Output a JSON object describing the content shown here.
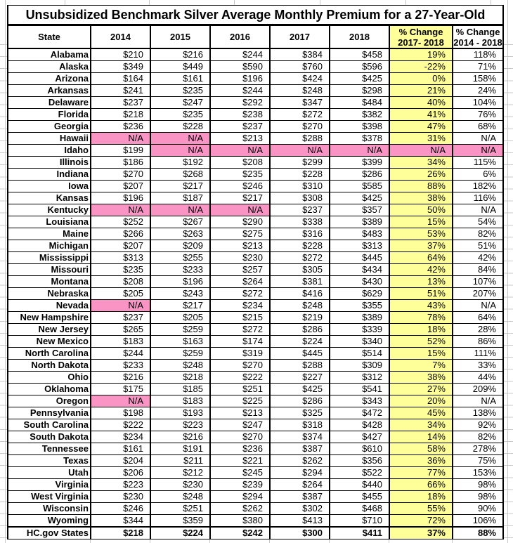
{
  "colors": {
    "highlight_yellow": "#FFFF99",
    "na_pink": "#F994C5",
    "table_border": "#000000",
    "margin_gridline": "#C9C9C9"
  },
  "header": {
    "state": "State",
    "pct1_line1": "% Change",
    "pct1_line2": "2017- 2018",
    "pct2_line1": "% Change",
    "pct2_line2": "2014 - 2018"
  },
  "chart_data": {
    "type": "table",
    "title": "Unsubsidized Benchmark Silver Average Monthly Premium for a 27-Year-Old",
    "columns": [
      "State",
      "2014",
      "2015",
      "2016",
      "2017",
      "2018",
      "% Change 2017- 2018",
      "% Change 2014 - 2018"
    ],
    "rows": [
      [
        "Alabama",
        "$210",
        "$216",
        "$244",
        "$384",
        "$458",
        "19%",
        "118%"
      ],
      [
        "Alaska",
        "$349",
        "$449",
        "$590",
        "$760",
        "$596",
        "-22%",
        "71%"
      ],
      [
        "Arizona",
        "$164",
        "$161",
        "$196",
        "$424",
        "$425",
        "0%",
        "158%"
      ],
      [
        "Arkansas",
        "$241",
        "$235",
        "$244",
        "$248",
        "$298",
        "21%",
        "24%"
      ],
      [
        "Delaware",
        "$237",
        "$247",
        "$292",
        "$347",
        "$484",
        "40%",
        "104%"
      ],
      [
        "Florida",
        "$218",
        "$235",
        "$238",
        "$272",
        "$382",
        "41%",
        "76%"
      ],
      [
        "Georgia",
        "$236",
        "$228",
        "$237",
        "$270",
        "$398",
        "47%",
        "68%"
      ],
      [
        "Hawaii",
        "N/A",
        "N/A",
        "$213",
        "$288",
        "$378",
        "31%",
        "N/A"
      ],
      [
        "Idaho",
        "$199",
        "N/A",
        "N/A",
        "N/A",
        "N/A",
        "N/A",
        "N/A"
      ],
      [
        "Illinois",
        "$186",
        "$192",
        "$208",
        "$299",
        "$399",
        "34%",
        "115%"
      ],
      [
        "Indiana",
        "$270",
        "$268",
        "$235",
        "$228",
        "$286",
        "26%",
        "6%"
      ],
      [
        "Iowa",
        "$207",
        "$217",
        "$246",
        "$310",
        "$585",
        "88%",
        "182%"
      ],
      [
        "Kansas",
        "$196",
        "$187",
        "$217",
        "$308",
        "$425",
        "38%",
        "116%"
      ],
      [
        "Kentucky",
        "N/A",
        "N/A",
        "N/A",
        "$237",
        "$357",
        "50%",
        "N/A"
      ],
      [
        "Louisiana",
        "$252",
        "$267",
        "$290",
        "$338",
        "$389",
        "15%",
        "54%"
      ],
      [
        "Maine",
        "$266",
        "$263",
        "$275",
        "$316",
        "$483",
        "53%",
        "82%"
      ],
      [
        "Michigan",
        "$207",
        "$209",
        "$213",
        "$228",
        "$313",
        "37%",
        "51%"
      ],
      [
        "Mississippi",
        "$313",
        "$255",
        "$230",
        "$272",
        "$445",
        "64%",
        "42%"
      ],
      [
        "Missouri",
        "$235",
        "$233",
        "$257",
        "$305",
        "$434",
        "42%",
        "84%"
      ],
      [
        "Montana",
        "$208",
        "$196",
        "$264",
        "$381",
        "$430",
        "13%",
        "107%"
      ],
      [
        "Nebraska",
        "$205",
        "$243",
        "$272",
        "$416",
        "$629",
        "51%",
        "207%"
      ],
      [
        "Nevada",
        "N/A",
        "$217",
        "$234",
        "$248",
        "$355",
        "43%",
        "N/A"
      ],
      [
        "New Hampshire",
        "$237",
        "$205",
        "$215",
        "$219",
        "$389",
        "78%",
        "64%"
      ],
      [
        "New Jersey",
        "$265",
        "$259",
        "$272",
        "$286",
        "$339",
        "18%",
        "28%"
      ],
      [
        "New Mexico",
        "$183",
        "$163",
        "$174",
        "$224",
        "$340",
        "52%",
        "86%"
      ],
      [
        "North Carolina",
        "$244",
        "$259",
        "$319",
        "$445",
        "$514",
        "15%",
        "111%"
      ],
      [
        "North Dakota",
        "$233",
        "$248",
        "$270",
        "$288",
        "$309",
        "7%",
        "33%"
      ],
      [
        "Ohio",
        "$216",
        "$218",
        "$222",
        "$227",
        "$312",
        "38%",
        "44%"
      ],
      [
        "Oklahoma",
        "$175",
        "$185",
        "$251",
        "$425",
        "$541",
        "27%",
        "209%"
      ],
      [
        "Oregon",
        "N/A",
        "$183",
        "$225",
        "$286",
        "$343",
        "20%",
        "N/A"
      ],
      [
        "Pennsylvania",
        "$198",
        "$193",
        "$213",
        "$325",
        "$472",
        "45%",
        "138%"
      ],
      [
        "South Carolina",
        "$222",
        "$223",
        "$247",
        "$318",
        "$428",
        "34%",
        "92%"
      ],
      [
        "South Dakota",
        "$234",
        "$216",
        "$270",
        "$374",
        "$427",
        "14%",
        "82%"
      ],
      [
        "Tennessee",
        "$161",
        "$191",
        "$236",
        "$387",
        "$610",
        "58%",
        "278%"
      ],
      [
        "Texas",
        "$204",
        "$211",
        "$221",
        "$262",
        "$356",
        "36%",
        "75%"
      ],
      [
        "Utah",
        "$206",
        "$212",
        "$245",
        "$294",
        "$522",
        "77%",
        "153%"
      ],
      [
        "Virginia",
        "$223",
        "$230",
        "$239",
        "$264",
        "$440",
        "66%",
        "98%"
      ],
      [
        "West Virginia",
        "$230",
        "$248",
        "$294",
        "$387",
        "$455",
        "18%",
        "98%"
      ],
      [
        "Wisconsin",
        "$246",
        "$251",
        "$262",
        "$302",
        "$468",
        "55%",
        "90%"
      ],
      [
        "Wyoming",
        "$344",
        "$359",
        "$380",
        "$413",
        "$710",
        "72%",
        "106%"
      ],
      [
        "HC.gov States",
        "$218",
        "$224",
        "$242",
        "$300",
        "$411",
        "37%",
        "88%"
      ]
    ],
    "pink_na_cells": {
      "Hawaii": [
        1,
        2
      ],
      "Idaho": [
        2,
        3,
        4,
        5,
        6,
        7
      ],
      "Kentucky": [
        1,
        2,
        3
      ],
      "Nevada": [
        1
      ],
      "Oregon": [
        1
      ]
    },
    "layout_hints": {
      "pct_change_2017_2018_column_background": "#FFFF99",
      "na_cell_background": "#F994C5",
      "last_row_is_bold_total": true
    }
  }
}
